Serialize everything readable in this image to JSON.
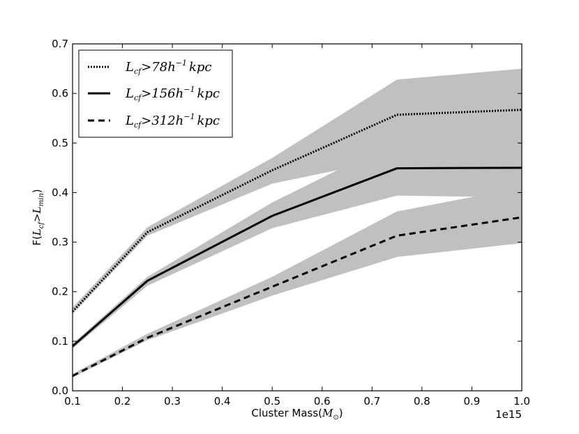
{
  "chart_data": {
    "type": "line",
    "title": "",
    "xlabel_prefix": "Cluster Mass(",
    "xlabel_symbol": "M",
    "xlabel_sub": "⊙",
    "xlabel_suffix": ")",
    "x_offset_text": "1e15",
    "ylabel_prefix": "F(",
    "ylabel_L1": "L",
    "ylabel_sub1": "cf",
    "ylabel_op": ">",
    "ylabel_L2": "L",
    "ylabel_sub2": "min",
    "ylabel_suffix": ")",
    "xlim": [
      0.1,
      1.0
    ],
    "ylim": [
      0.0,
      0.7
    ],
    "x_ticks": [
      0.1,
      0.2,
      0.3,
      0.4,
      0.5,
      0.6,
      0.7,
      0.8,
      0.9,
      1.0
    ],
    "x_tick_labels": [
      "0.1",
      "0.2",
      "0.3",
      "0.4",
      "0.5",
      "0.6",
      "0.7",
      "0.8",
      "0.9",
      "1.0"
    ],
    "y_ticks": [
      0.0,
      0.1,
      0.2,
      0.3,
      0.4,
      0.5,
      0.6,
      0.7
    ],
    "y_tick_labels": [
      "0.0",
      "0.1",
      "0.2",
      "0.3",
      "0.4",
      "0.5",
      "0.6",
      "0.7"
    ],
    "x": [
      0.1,
      0.25,
      0.5,
      0.75,
      1.0
    ],
    "legend_position": "top-left",
    "band_color": "#c0c0c0",
    "line_color": "#000000",
    "series": [
      {
        "name": "78",
        "legend_L": "L",
        "legend_sub": "cf",
        "legend_value": ">78",
        "legend_h": "h",
        "legend_exp": "−1",
        "legend_unit": "kpc",
        "style": "dotted",
        "values": [
          0.16,
          0.32,
          0.445,
          0.557,
          0.567
        ],
        "lower": [
          0.155,
          0.313,
          0.418,
          0.47,
          0.49
        ],
        "upper": [
          0.168,
          0.33,
          0.47,
          0.628,
          0.65
        ]
      },
      {
        "name": "156",
        "legend_L": "L",
        "legend_sub": "cf",
        "legend_value": ">156",
        "legend_h": "h",
        "legend_exp": "−1",
        "legend_unit": "kpc",
        "style": "solid",
        "values": [
          0.09,
          0.222,
          0.353,
          0.449,
          0.45
        ],
        "lower": [
          0.085,
          0.212,
          0.328,
          0.394,
          0.39
        ],
        "upper": [
          0.095,
          0.23,
          0.38,
          0.505,
          0.51
        ]
      },
      {
        "name": "312",
        "legend_L": "L",
        "legend_sub": "cf",
        "legend_value": ">312",
        "legend_h": "h",
        "legend_exp": "−1",
        "legend_unit": "kpc",
        "style": "dashed",
        "values": [
          0.03,
          0.107,
          0.21,
          0.313,
          0.35
        ],
        "lower": [
          0.027,
          0.102,
          0.192,
          0.27,
          0.298
        ],
        "upper": [
          0.034,
          0.115,
          0.23,
          0.362,
          0.41
        ]
      }
    ]
  }
}
